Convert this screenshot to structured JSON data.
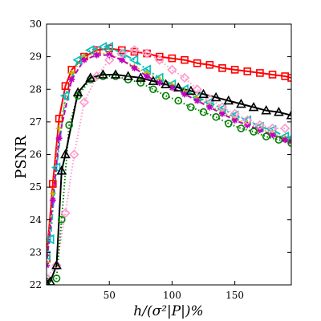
{
  "chart_data": {
    "type": "line",
    "title": "",
    "xlabel": "h/(σ²|P|)%",
    "ylabel": "PSNR",
    "xlim": [
      0,
      195
    ],
    "ylim": [
      22,
      30
    ],
    "xticks": [
      50,
      100,
      150
    ],
    "yticks": [
      22,
      23,
      24,
      25,
      26,
      27,
      28,
      29,
      30
    ],
    "xtick_labels": [
      "50",
      "100",
      "150"
    ],
    "ytick_labels": [
      "22",
      "23",
      "24",
      "25",
      "26",
      "27",
      "28",
      "29",
      "30"
    ],
    "grid": false,
    "legend": "none",
    "series": [
      {
        "color": "#ff0000",
        "line": "solid",
        "marker": "square",
        "x": [
          0,
          5,
          10,
          15,
          20,
          30,
          40,
          50,
          60,
          70,
          80,
          90,
          100,
          110,
          120,
          130,
          140,
          150,
          160,
          170,
          180,
          190,
          195
        ],
        "y": [
          22.8,
          25.1,
          27.1,
          28.1,
          28.6,
          29.0,
          29.2,
          29.25,
          29.2,
          29.15,
          29.1,
          29.0,
          28.95,
          28.9,
          28.8,
          28.75,
          28.65,
          28.6,
          28.55,
          28.5,
          28.45,
          28.4,
          28.35
        ]
      },
      {
        "color": "#00bfbf",
        "line": "dashdot",
        "marker": "triangle-left",
        "x": [
          0,
          3,
          8,
          15,
          25,
          35,
          45,
          50,
          60,
          70,
          80,
          90,
          100,
          110,
          120,
          130,
          140,
          150,
          160,
          170,
          180,
          190,
          195
        ],
        "y": [
          22.9,
          23.4,
          25.6,
          27.8,
          28.9,
          29.2,
          29.3,
          29.3,
          29.1,
          28.9,
          28.6,
          28.35,
          28.15,
          28.0,
          27.75,
          27.6,
          27.4,
          27.2,
          27.05,
          26.85,
          26.75,
          26.55,
          26.5
        ]
      },
      {
        "color": "#bfbf00",
        "line": "dotted",
        "marker": "plus",
        "x": [
          0,
          5,
          10,
          20,
          30,
          40,
          50,
          60,
          70,
          80,
          90,
          100,
          110,
          120,
          130,
          140,
          150,
          160,
          170,
          180,
          190,
          195
        ],
        "y": [
          22.7,
          24.8,
          26.8,
          28.5,
          29.0,
          29.1,
          29.1,
          28.9,
          28.7,
          28.5,
          28.3,
          28.15,
          27.95,
          27.75,
          27.5,
          27.3,
          27.1,
          26.95,
          26.8,
          26.65,
          26.5,
          26.45
        ]
      },
      {
        "color": "#bf00bf",
        "line": "dashed",
        "marker": "star",
        "x": [
          0,
          5,
          10,
          20,
          30,
          40,
          50,
          60,
          70,
          80,
          90,
          100,
          110,
          120,
          130,
          140,
          150,
          160,
          170,
          180,
          190,
          195
        ],
        "y": [
          22.6,
          24.6,
          26.5,
          28.3,
          28.9,
          29.05,
          29.05,
          28.9,
          28.65,
          28.4,
          28.2,
          28.05,
          27.85,
          27.65,
          27.45,
          27.25,
          27.05,
          26.9,
          26.75,
          26.6,
          26.45,
          26.4
        ]
      },
      {
        "color": "#ff99cc",
        "line": "dotted",
        "marker": "diamond",
        "x": [
          0,
          8,
          15,
          22,
          30,
          40,
          50,
          60,
          70,
          80,
          90,
          100,
          110,
          120,
          130,
          140,
          150,
          160,
          170,
          180,
          190
        ],
        "y": [
          22.2,
          22.6,
          24.2,
          26.0,
          27.6,
          28.4,
          28.9,
          29.1,
          29.2,
          29.1,
          28.9,
          28.6,
          28.35,
          28.0,
          27.7,
          27.45,
          27.25,
          27.05,
          26.9,
          26.8,
          26.8
        ]
      },
      {
        "color": "#007f00",
        "line": "dotted",
        "marker": "circle",
        "x": [
          0,
          8,
          12,
          18,
          25,
          35,
          45,
          55,
          65,
          75,
          85,
          95,
          105,
          115,
          125,
          135,
          145,
          155,
          165,
          175,
          185,
          195
        ],
        "y": [
          22.1,
          22.2,
          24.0,
          26.9,
          27.8,
          28.3,
          28.4,
          28.4,
          28.3,
          28.2,
          28.0,
          27.8,
          27.65,
          27.45,
          27.3,
          27.15,
          26.95,
          26.8,
          26.7,
          26.55,
          26.45,
          26.35
        ]
      },
      {
        "color": "#000000",
        "line": "solid",
        "marker": "triangle-up",
        "x": [
          0,
          3,
          8,
          12,
          15,
          25,
          35,
          45,
          55,
          65,
          75,
          85,
          95,
          105,
          115,
          125,
          135,
          145,
          155,
          165,
          175,
          185,
          195
        ],
        "y": [
          22.05,
          22.1,
          22.6,
          25.5,
          26.0,
          27.9,
          28.35,
          28.45,
          28.45,
          28.4,
          28.35,
          28.25,
          28.15,
          28.05,
          27.95,
          27.85,
          27.75,
          27.65,
          27.55,
          27.45,
          27.35,
          27.3,
          27.2
        ]
      }
    ]
  }
}
